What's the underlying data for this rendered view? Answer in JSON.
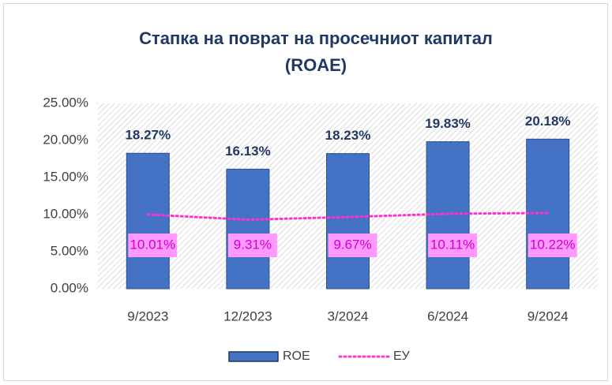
{
  "chart_data": {
    "type": "bar",
    "title": [
      "Стапка на поврат на просечниот капитал",
      "(ROAE)"
    ],
    "categories": [
      "9/2023",
      "12/2023",
      "3/2024",
      "6/2024",
      "9/2024"
    ],
    "series": [
      {
        "name": "ROE",
        "type": "bar",
        "color": "#4472c4",
        "values": [
          18.27,
          16.13,
          18.23,
          19.83,
          20.18
        ],
        "value_labels": [
          "18.27%",
          "16.13%",
          "18.23%",
          "19.83%",
          "20.18%"
        ]
      },
      {
        "name": "ЕУ",
        "type": "line",
        "color": "#ff33cc",
        "values": [
          10.01,
          9.31,
          9.67,
          10.11,
          10.22
        ],
        "value_labels": [
          "10.01%",
          "9.31%",
          "9.67%",
          "10.11%",
          "10.22%"
        ]
      }
    ],
    "ylim": [
      0,
      25
    ],
    "yticks": [
      {
        "value": 0,
        "label": "0.00%"
      },
      {
        "value": 5,
        "label": "5.00%"
      },
      {
        "value": 10,
        "label": "10.00%"
      },
      {
        "value": 15,
        "label": "15.00%"
      },
      {
        "value": 20,
        "label": "20.00%"
      },
      {
        "value": 25,
        "label": "25.00%"
      }
    ],
    "legend": "bottom"
  }
}
